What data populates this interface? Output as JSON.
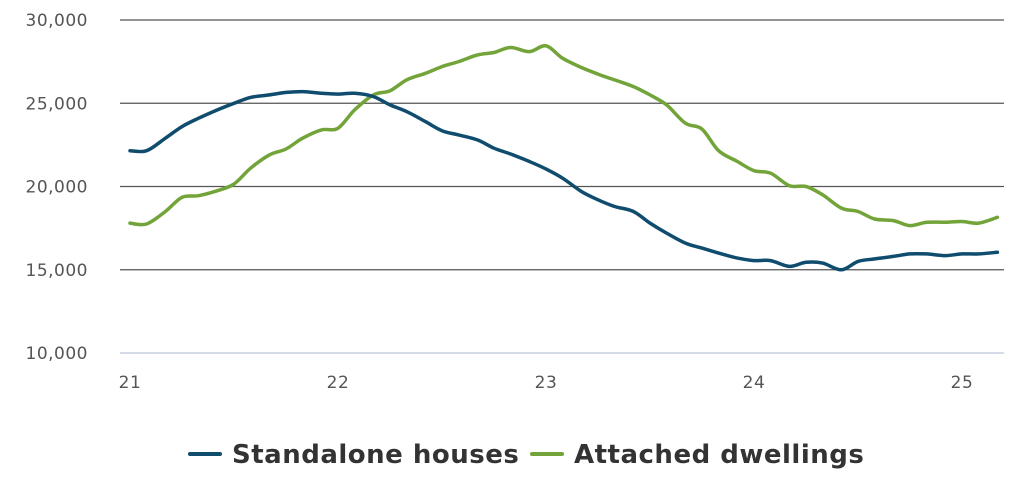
{
  "chart_data": {
    "type": "line",
    "title": "",
    "xlabel": "",
    "ylabel": "",
    "xlim": [
      21.0,
      25.2
    ],
    "ylim": [
      10000,
      30000
    ],
    "grid": true,
    "legend_position": "bottom",
    "x_ticks": [
      {
        "value": 21,
        "label": "21"
      },
      {
        "value": 22,
        "label": "22"
      },
      {
        "value": 23,
        "label": "23"
      },
      {
        "value": 24,
        "label": "24"
      },
      {
        "value": 25,
        "label": "25"
      }
    ],
    "y_ticks": [
      {
        "value": 10000,
        "label": "10,000"
      },
      {
        "value": 15000,
        "label": "15,000"
      },
      {
        "value": 20000,
        "label": "20,000"
      },
      {
        "value": 25000,
        "label": "25,000"
      },
      {
        "value": 30000,
        "label": "30,000"
      }
    ],
    "series": [
      {
        "name": "Standalone houses",
        "color": "#0f4c6e",
        "points": [
          [
            21.0,
            22150
          ],
          [
            21.08,
            22150
          ],
          [
            21.17,
            22900
          ],
          [
            21.25,
            23600
          ],
          [
            21.33,
            24100
          ],
          [
            21.42,
            24600
          ],
          [
            21.5,
            25000
          ],
          [
            21.58,
            25350
          ],
          [
            21.67,
            25500
          ],
          [
            21.75,
            25650
          ],
          [
            21.83,
            25700
          ],
          [
            21.92,
            25600
          ],
          [
            22.0,
            25550
          ],
          [
            22.08,
            25600
          ],
          [
            22.17,
            25400
          ],
          [
            22.25,
            24900
          ],
          [
            22.33,
            24500
          ],
          [
            22.42,
            23900
          ],
          [
            22.5,
            23350
          ],
          [
            22.58,
            23100
          ],
          [
            22.67,
            22800
          ],
          [
            22.75,
            22300
          ],
          [
            22.83,
            21950
          ],
          [
            22.92,
            21500
          ],
          [
            23.0,
            21050
          ],
          [
            23.08,
            20500
          ],
          [
            23.17,
            19700
          ],
          [
            23.25,
            19200
          ],
          [
            23.33,
            18800
          ],
          [
            23.42,
            18500
          ],
          [
            23.5,
            17800
          ],
          [
            23.58,
            17200
          ],
          [
            23.67,
            16600
          ],
          [
            23.75,
            16300
          ],
          [
            23.83,
            16000
          ],
          [
            23.92,
            15700
          ],
          [
            24.0,
            15550
          ],
          [
            24.08,
            15550
          ],
          [
            24.17,
            15200
          ],
          [
            24.25,
            15450
          ],
          [
            24.33,
            15400
          ],
          [
            24.42,
            15000
          ],
          [
            24.5,
            15500
          ],
          [
            24.58,
            15650
          ],
          [
            24.67,
            15800
          ],
          [
            24.75,
            15950
          ],
          [
            24.83,
            15950
          ],
          [
            24.92,
            15850
          ],
          [
            25.0,
            15950
          ],
          [
            25.08,
            15950
          ],
          [
            25.17,
            16050
          ]
        ]
      },
      {
        "name": "Attached dwellings",
        "color": "#72a43a",
        "points": [
          [
            21.0,
            17800
          ],
          [
            21.08,
            17750
          ],
          [
            21.17,
            18500
          ],
          [
            21.25,
            19350
          ],
          [
            21.33,
            19450
          ],
          [
            21.42,
            19750
          ],
          [
            21.5,
            20150
          ],
          [
            21.58,
            21100
          ],
          [
            21.67,
            21900
          ],
          [
            21.75,
            22250
          ],
          [
            21.83,
            22900
          ],
          [
            21.92,
            23400
          ],
          [
            22.0,
            23500
          ],
          [
            22.08,
            24600
          ],
          [
            22.17,
            25500
          ],
          [
            22.25,
            25750
          ],
          [
            22.33,
            26400
          ],
          [
            22.42,
            26800
          ],
          [
            22.5,
            27200
          ],
          [
            22.58,
            27500
          ],
          [
            22.67,
            27900
          ],
          [
            22.75,
            28050
          ],
          [
            22.83,
            28350
          ],
          [
            22.92,
            28100
          ],
          [
            23.0,
            28450
          ],
          [
            23.08,
            27700
          ],
          [
            23.17,
            27150
          ],
          [
            23.25,
            26750
          ],
          [
            23.33,
            26400
          ],
          [
            23.42,
            26000
          ],
          [
            23.5,
            25500
          ],
          [
            23.58,
            24900
          ],
          [
            23.67,
            23800
          ],
          [
            23.75,
            23450
          ],
          [
            23.83,
            22150
          ],
          [
            23.92,
            21500
          ],
          [
            24.0,
            20950
          ],
          [
            24.08,
            20800
          ],
          [
            24.17,
            20050
          ],
          [
            24.25,
            20000
          ],
          [
            24.33,
            19500
          ],
          [
            24.42,
            18700
          ],
          [
            24.5,
            18500
          ],
          [
            24.58,
            18050
          ],
          [
            24.67,
            17950
          ],
          [
            24.75,
            17650
          ],
          [
            24.83,
            17850
          ],
          [
            24.92,
            17850
          ],
          [
            25.0,
            17900
          ],
          [
            25.08,
            17800
          ],
          [
            25.17,
            18150
          ]
        ]
      }
    ]
  }
}
